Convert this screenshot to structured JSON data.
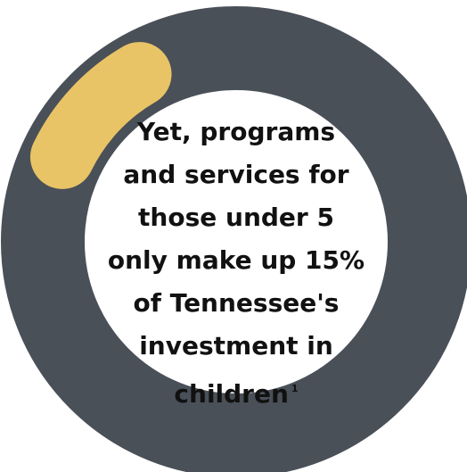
{
  "chart_data": {
    "type": "pie",
    "values": [
      15,
      85
    ],
    "colors": [
      "#e8c466",
      "#4a5058"
    ]
  },
  "center_text": {
    "lines": [
      "Yet, programs",
      "and services for",
      "those under 5",
      "only make up 15%",
      "of Tennessee's",
      "investment in",
      "children"
    ],
    "footnote": "1"
  }
}
